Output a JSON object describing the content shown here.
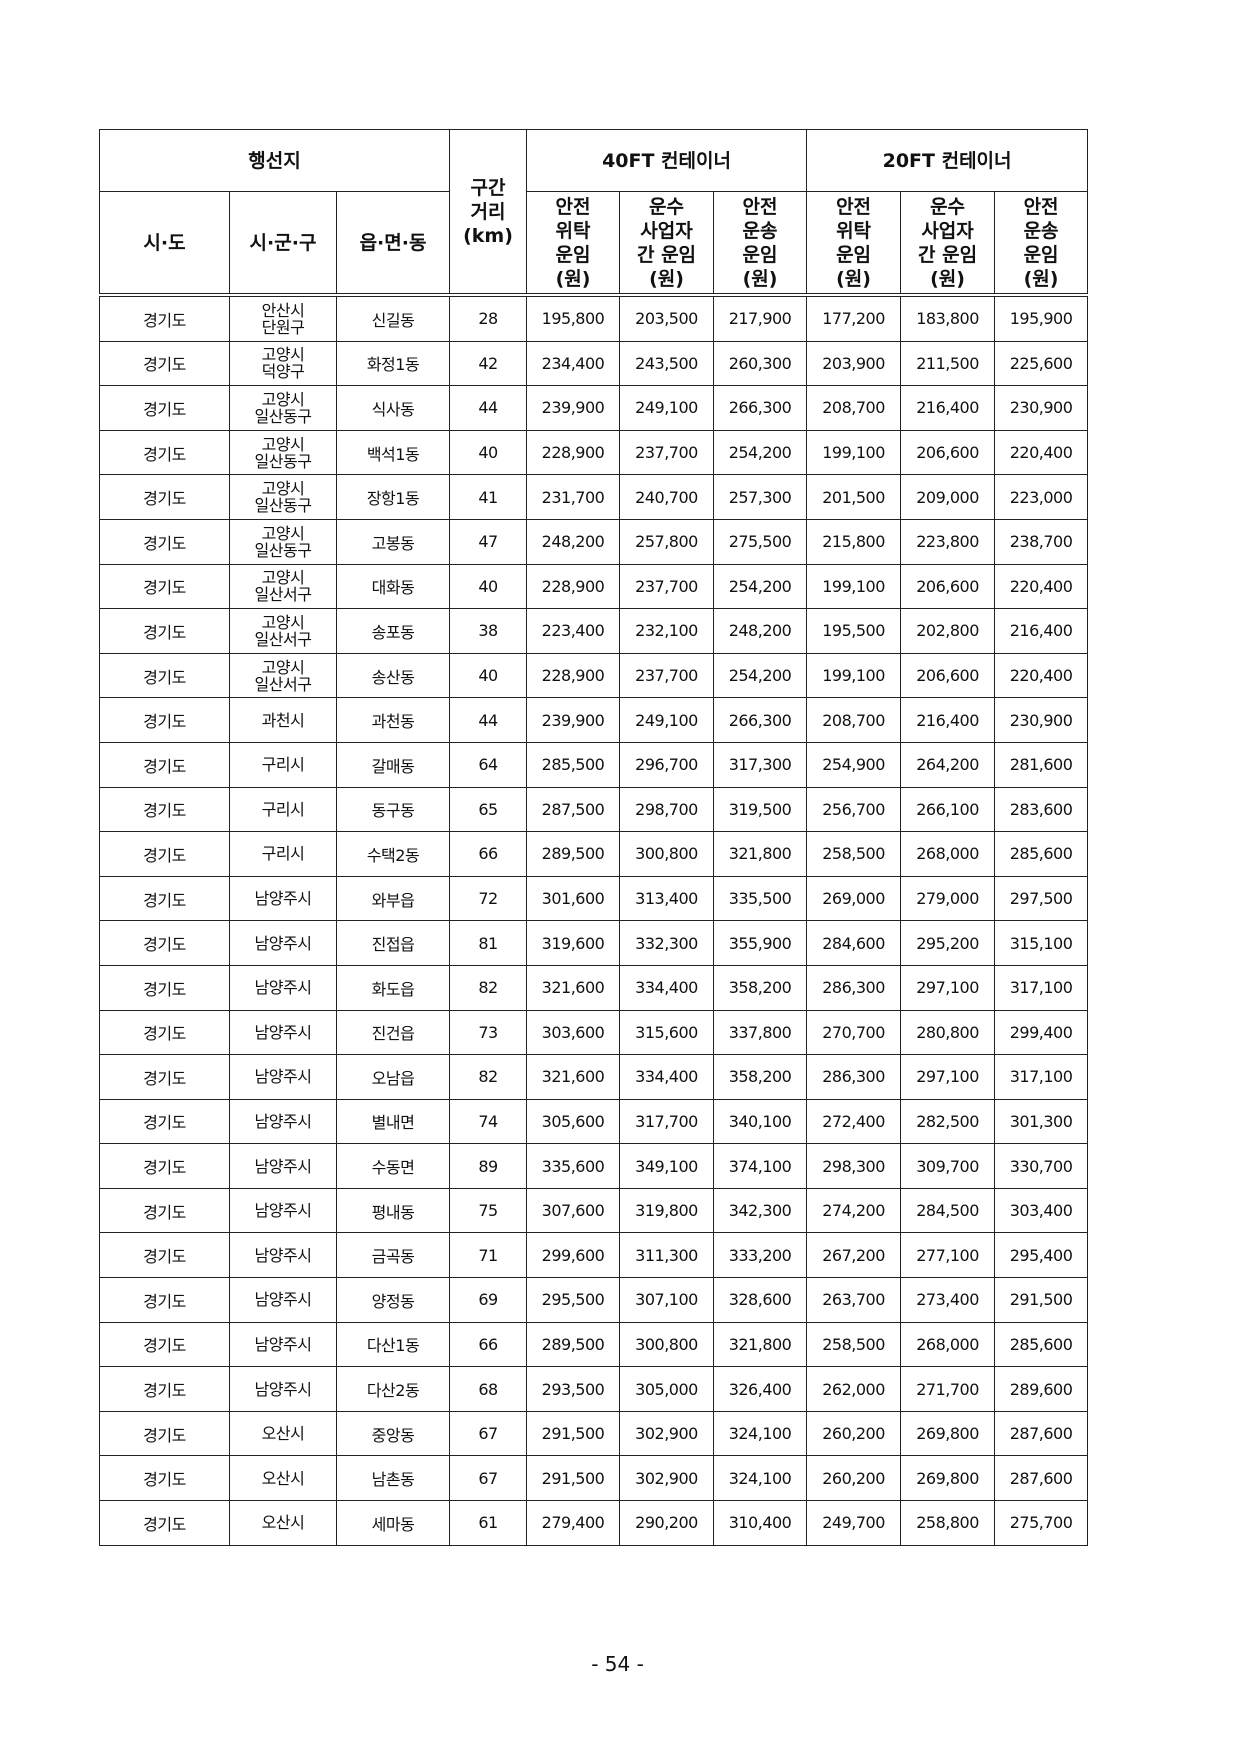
{
  "header": {
    "destination": "행선지",
    "distance": "구간\n거리\n(km)",
    "ft40": "40FT 컨테이너",
    "ft20": "20FT 컨테이너",
    "sido": "시·도",
    "sigungu": "시·군·구",
    "eupmyeondong": "읍·면·동",
    "fare1": "안전\n위탁\n운임\n(원)",
    "fare2": "운수\n사업자\n간 운임\n(원)",
    "fare3": "안전\n운송\n운임\n(원)"
  },
  "rows": [
    [
      "경기도",
      "안산시\n단원구",
      "신길동",
      "28",
      "195,800",
      "203,500",
      "217,900",
      "177,200",
      "183,800",
      "195,900"
    ],
    [
      "경기도",
      "고양시\n덕양구",
      "화정1동",
      "42",
      "234,400",
      "243,500",
      "260,300",
      "203,900",
      "211,500",
      "225,600"
    ],
    [
      "경기도",
      "고양시\n일산동구",
      "식사동",
      "44",
      "239,900",
      "249,100",
      "266,300",
      "208,700",
      "216,400",
      "230,900"
    ],
    [
      "경기도",
      "고양시\n일산동구",
      "백석1동",
      "40",
      "228,900",
      "237,700",
      "254,200",
      "199,100",
      "206,600",
      "220,400"
    ],
    [
      "경기도",
      "고양시\n일산동구",
      "장항1동",
      "41",
      "231,700",
      "240,700",
      "257,300",
      "201,500",
      "209,000",
      "223,000"
    ],
    [
      "경기도",
      "고양시\n일산동구",
      "고봉동",
      "47",
      "248,200",
      "257,800",
      "275,500",
      "215,800",
      "223,800",
      "238,700"
    ],
    [
      "경기도",
      "고양시\n일산서구",
      "대화동",
      "40",
      "228,900",
      "237,700",
      "254,200",
      "199,100",
      "206,600",
      "220,400"
    ],
    [
      "경기도",
      "고양시\n일산서구",
      "송포동",
      "38",
      "223,400",
      "232,100",
      "248,200",
      "195,500",
      "202,800",
      "216,400"
    ],
    [
      "경기도",
      "고양시\n일산서구",
      "송산동",
      "40",
      "228,900",
      "237,700",
      "254,200",
      "199,100",
      "206,600",
      "220,400"
    ],
    [
      "경기도",
      "과천시",
      "과천동",
      "44",
      "239,900",
      "249,100",
      "266,300",
      "208,700",
      "216,400",
      "230,900"
    ],
    [
      "경기도",
      "구리시",
      "갈매동",
      "64",
      "285,500",
      "296,700",
      "317,300",
      "254,900",
      "264,200",
      "281,600"
    ],
    [
      "경기도",
      "구리시",
      "동구동",
      "65",
      "287,500",
      "298,700",
      "319,500",
      "256,700",
      "266,100",
      "283,600"
    ],
    [
      "경기도",
      "구리시",
      "수택2동",
      "66",
      "289,500",
      "300,800",
      "321,800",
      "258,500",
      "268,000",
      "285,600"
    ],
    [
      "경기도",
      "남양주시",
      "와부읍",
      "72",
      "301,600",
      "313,400",
      "335,500",
      "269,000",
      "279,000",
      "297,500"
    ],
    [
      "경기도",
      "남양주시",
      "진접읍",
      "81",
      "319,600",
      "332,300",
      "355,900",
      "284,600",
      "295,200",
      "315,100"
    ],
    [
      "경기도",
      "남양주시",
      "화도읍",
      "82",
      "321,600",
      "334,400",
      "358,200",
      "286,300",
      "297,100",
      "317,100"
    ],
    [
      "경기도",
      "남양주시",
      "진건읍",
      "73",
      "303,600",
      "315,600",
      "337,800",
      "270,700",
      "280,800",
      "299,400"
    ],
    [
      "경기도",
      "남양주시",
      "오남읍",
      "82",
      "321,600",
      "334,400",
      "358,200",
      "286,300",
      "297,100",
      "317,100"
    ],
    [
      "경기도",
      "남양주시",
      "별내면",
      "74",
      "305,600",
      "317,700",
      "340,100",
      "272,400",
      "282,500",
      "301,300"
    ],
    [
      "경기도",
      "남양주시",
      "수동면",
      "89",
      "335,600",
      "349,100",
      "374,100",
      "298,300",
      "309,700",
      "330,700"
    ],
    [
      "경기도",
      "남양주시",
      "평내동",
      "75",
      "307,600",
      "319,800",
      "342,300",
      "274,200",
      "284,500",
      "303,400"
    ],
    [
      "경기도",
      "남양주시",
      "금곡동",
      "71",
      "299,600",
      "311,300",
      "333,200",
      "267,200",
      "277,100",
      "295,400"
    ],
    [
      "경기도",
      "남양주시",
      "양정동",
      "69",
      "295,500",
      "307,100",
      "328,600",
      "263,700",
      "273,400",
      "291,500"
    ],
    [
      "경기도",
      "남양주시",
      "다산1동",
      "66",
      "289,500",
      "300,800",
      "321,800",
      "258,500",
      "268,000",
      "285,600"
    ],
    [
      "경기도",
      "남양주시",
      "다산2동",
      "68",
      "293,500",
      "305,000",
      "326,400",
      "262,000",
      "271,700",
      "289,600"
    ],
    [
      "경기도",
      "오산시",
      "중앙동",
      "67",
      "291,500",
      "302,900",
      "324,100",
      "260,200",
      "269,800",
      "287,600"
    ],
    [
      "경기도",
      "오산시",
      "남촌동",
      "67",
      "291,500",
      "302,900",
      "324,100",
      "260,200",
      "269,800",
      "287,600"
    ],
    [
      "경기도",
      "오산시",
      "세마동",
      "61",
      "279,400",
      "290,200",
      "310,400",
      "249,700",
      "258,800",
      "275,700"
    ]
  ],
  "page_number": "- 54 -"
}
